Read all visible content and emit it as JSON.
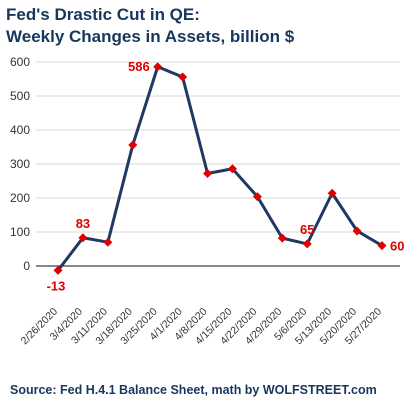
{
  "title": "Fed's Drastic Cut in QE:",
  "subtitle": "Weekly Changes in Assets, billion $",
  "source": "Source: Fed H.4.1 Balance Sheet,   math by WOLFSTREET.com",
  "colors": {
    "line": "#1f3864",
    "marker": "#e00000",
    "label": "#e00000",
    "title": "#17375e",
    "grid": "#d9d9d9"
  },
  "chart_data": {
    "type": "line",
    "title": "Fed's Drastic Cut in QE:",
    "subtitle": "Weekly Changes in Assets, billion $",
    "xlabel": "",
    "ylabel": "",
    "ylim": [
      -100,
      600
    ],
    "yticks": [
      0,
      100,
      200,
      300,
      400,
      500,
      600
    ],
    "grid": true,
    "categories": [
      "2/26/2020",
      "3/4/2020",
      "3/11/2020",
      "3/18/2020",
      "3/25/2020",
      "4/1/2020",
      "4/8/2020",
      "4/15/2020",
      "4/22/2020",
      "4/29/2020",
      "5/6/2020",
      "5/13/2020",
      "5/20/2020",
      "5/27/2020"
    ],
    "values": [
      -13,
      83,
      70,
      356,
      586,
      556,
      272,
      286,
      204,
      82,
      65,
      214,
      103,
      60
    ],
    "data_labels": [
      {
        "index": 0,
        "text": "-13"
      },
      {
        "index": 1,
        "text": "83"
      },
      {
        "index": 4,
        "text": "586"
      },
      {
        "index": 10,
        "text": "65"
      },
      {
        "index": 13,
        "text": "60"
      }
    ]
  }
}
